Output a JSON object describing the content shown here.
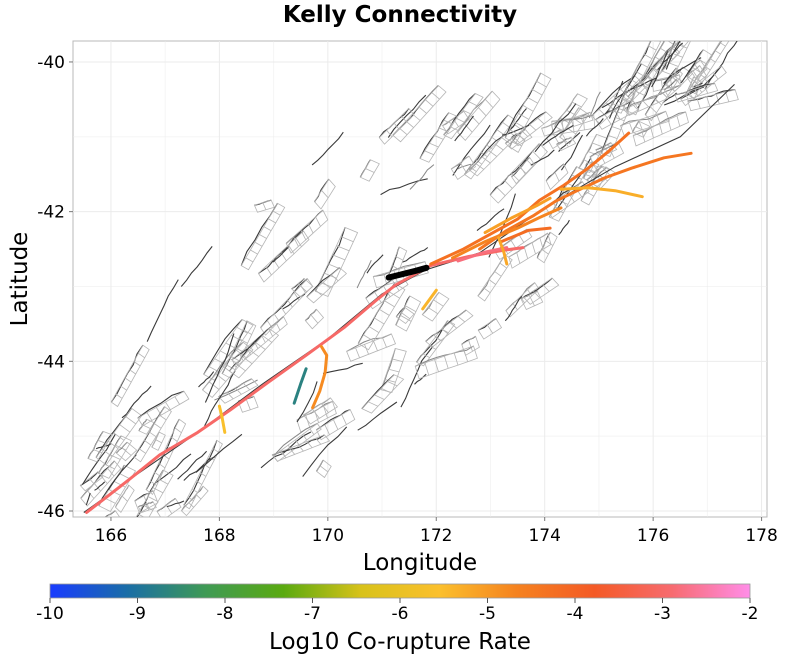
{
  "chart_data": {
    "type": "map",
    "title": "Kelly Connectivity",
    "xlabel": "Longitude",
    "ylabel": "Latitude",
    "xlim": [
      165.3,
      178.1
    ],
    "ylim": [
      -46.08,
      -39.72
    ],
    "x_ticks": [
      166,
      168,
      170,
      172,
      174,
      176,
      178
    ],
    "y_ticks": [
      -40,
      -42,
      -44,
      -46
    ],
    "x_tick_labels": [
      "166",
      "168",
      "170",
      "172",
      "174",
      "176",
      "178"
    ],
    "y_tick_labels": [
      "-40",
      "-42",
      "-44",
      "-46"
    ],
    "colorbar": {
      "title": "Log10 Co-rupture Rate",
      "min": -10,
      "max": -2,
      "ticks": [
        -10,
        -9,
        -8,
        -7,
        -6,
        -5,
        -4,
        -3,
        -2
      ],
      "tick_labels": [
        "-10",
        "-9",
        "-8",
        "-7",
        "-6",
        "-5",
        "-4",
        "-3",
        "-2"
      ],
      "stops": [
        "#1a3cff",
        "#1a6ea6",
        "#3f9a55",
        "#5aaa10",
        "#d8c21a",
        "#fbc02d",
        "#f5821f",
        "#f45a26",
        "#f76b70",
        "#ff8de8"
      ]
    },
    "source_fault": {
      "name": "Kelly",
      "color": "#000000",
      "trace": [
        [
          171.12,
          -42.88
        ],
        [
          171.4,
          -42.83
        ],
        [
          171.62,
          -42.79
        ],
        [
          171.82,
          -42.75
        ]
      ]
    },
    "corupture_faults": [
      {
        "log10_rate": -3.0,
        "trace": [
          [
            165.55,
            -46.02
          ],
          [
            166.3,
            -45.6
          ],
          [
            166.9,
            -45.25
          ],
          [
            167.6,
            -44.95
          ],
          [
            168.2,
            -44.65
          ],
          [
            168.9,
            -44.28
          ],
          [
            169.6,
            -43.92
          ],
          [
            170.3,
            -43.55
          ],
          [
            170.9,
            -43.18
          ],
          [
            171.25,
            -42.98
          ],
          [
            171.9,
            -42.72
          ],
          [
            172.6,
            -42.6
          ],
          [
            173.2,
            -42.52
          ],
          [
            173.6,
            -42.48
          ]
        ]
      },
      {
        "log10_rate": -2.8,
        "trace": [
          [
            172.4,
            -42.66
          ],
          [
            172.9,
            -42.54
          ],
          [
            173.3,
            -42.48
          ]
        ]
      },
      {
        "log10_rate": -4.3,
        "trace": [
          [
            171.9,
            -42.7
          ],
          [
            172.5,
            -42.5
          ],
          [
            173.0,
            -42.3
          ],
          [
            173.5,
            -42.1
          ],
          [
            173.9,
            -41.85
          ],
          [
            174.35,
            -41.65
          ],
          [
            174.8,
            -41.42
          ],
          [
            175.2,
            -41.18
          ],
          [
            175.55,
            -40.95
          ]
        ]
      },
      {
        "log10_rate": -4.4,
        "trace": [
          [
            172.8,
            -42.5
          ],
          [
            173.3,
            -42.25
          ],
          [
            173.8,
            -42.05
          ],
          [
            174.2,
            -41.86
          ],
          [
            174.6,
            -41.72
          ],
          [
            175.1,
            -41.55
          ],
          [
            175.6,
            -41.42
          ],
          [
            176.2,
            -41.28
          ],
          [
            176.7,
            -41.22
          ]
        ]
      },
      {
        "log10_rate": -4.7,
        "trace": [
          [
            172.3,
            -42.62
          ],
          [
            172.9,
            -42.4
          ],
          [
            173.5,
            -42.22
          ],
          [
            173.9,
            -42.08
          ],
          [
            174.3,
            -41.95
          ]
        ]
      },
      {
        "log10_rate": -5.3,
        "trace": [
          [
            174.3,
            -41.7
          ],
          [
            174.8,
            -41.68
          ],
          [
            175.3,
            -41.72
          ],
          [
            175.8,
            -41.8
          ]
        ]
      },
      {
        "log10_rate": -5.1,
        "trace": [
          [
            172.9,
            -42.28
          ],
          [
            173.4,
            -42.08
          ],
          [
            173.85,
            -41.92
          ],
          [
            174.1,
            -41.82
          ]
        ]
      },
      {
        "log10_rate": -4.2,
        "trace": [
          [
            173.2,
            -42.4
          ],
          [
            173.7,
            -42.25
          ],
          [
            174.1,
            -42.22
          ]
        ]
      },
      {
        "log10_rate": -4.8,
        "trace": [
          [
            169.72,
            -44.62
          ],
          [
            169.85,
            -44.4
          ],
          [
            169.95,
            -44.15
          ],
          [
            169.98,
            -43.92
          ],
          [
            169.88,
            -43.8
          ]
        ]
      },
      {
        "log10_rate": -5.4,
        "trace": [
          [
            172.0,
            -43.05
          ],
          [
            171.9,
            -43.15
          ],
          [
            171.75,
            -43.3
          ]
        ]
      },
      {
        "log10_rate": -5.6,
        "trace": [
          [
            168.0,
            -44.6
          ],
          [
            168.05,
            -44.75
          ],
          [
            168.1,
            -44.95
          ]
        ]
      },
      {
        "log10_rate": -8.7,
        "trace": [
          [
            169.38,
            -44.56
          ],
          [
            169.5,
            -44.3
          ],
          [
            169.6,
            -44.1
          ]
        ]
      },
      {
        "log10_rate": -5.2,
        "trace": [
          [
            173.15,
            -42.35
          ],
          [
            173.25,
            -42.55
          ],
          [
            173.3,
            -42.7
          ]
        ]
      }
    ]
  }
}
